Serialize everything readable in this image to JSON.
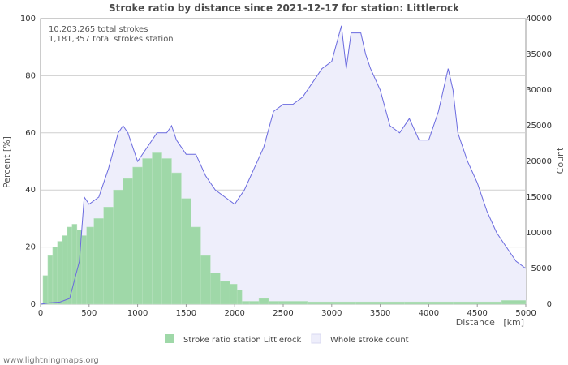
{
  "chart_data": {
    "type": "bar+area",
    "title": "Stroke ratio by distance since 2021-12-17 for station: Littlerock",
    "xlabel": "Distance   [km]",
    "ylabel_left": "Percent   [%]",
    "ylabel_right": "Count",
    "x_ticks": [
      "0",
      "500",
      "1000",
      "1500",
      "2000",
      "2500",
      "3000",
      "3500",
      "4000",
      "4500",
      "5000"
    ],
    "y_left_ticks": [
      "0",
      "20",
      "40",
      "60",
      "80",
      "100"
    ],
    "y_right_ticks": [
      "0",
      "5000",
      "10000",
      "15000",
      "20000",
      "25000",
      "30000",
      "35000",
      "40000"
    ],
    "xlim": [
      0,
      5000
    ],
    "ylim_left": [
      0,
      100
    ],
    "ylim_right": [
      0,
      40000
    ],
    "annotations": [
      "10,203,265 total strokes",
      "1,181,357 total strokes station"
    ],
    "series": [
      {
        "name": "Stroke ratio station Littlerock",
        "axis": "left",
        "style": "bar",
        "color": "#9fd8a8",
        "x": [
          50,
          100,
          150,
          200,
          250,
          300,
          350,
          400,
          450,
          500,
          600,
          700,
          800,
          900,
          1000,
          1100,
          1200,
          1300,
          1400,
          1500,
          1600,
          1700,
          1800,
          1900,
          2000,
          2050,
          2100,
          2200,
          2300,
          2400,
          2500,
          3000,
          3500,
          4000,
          4500,
          5000
        ],
        "values": [
          10,
          17,
          20,
          22,
          24,
          27,
          28,
          26,
          24,
          27,
          30,
          34,
          40,
          44,
          48,
          51,
          53,
          51,
          46,
          37,
          27,
          17,
          11,
          8,
          7,
          5,
          1,
          1,
          2,
          1,
          1,
          0.8,
          0.8,
          0.8,
          0.8,
          1.3
        ]
      },
      {
        "name": "Whole stroke count",
        "axis": "right",
        "style": "area",
        "color": "#6a6adf",
        "fill": "#eeeefb",
        "x": [
          0,
          100,
          200,
          300,
          400,
          450,
          500,
          600,
          700,
          800,
          850,
          900,
          1000,
          1100,
          1200,
          1300,
          1350,
          1400,
          1500,
          1600,
          1700,
          1800,
          1900,
          2000,
          2100,
          2200,
          2300,
          2400,
          2500,
          2600,
          2700,
          2800,
          2900,
          3000,
          3100,
          3150,
          3200,
          3300,
          3350,
          3400,
          3500,
          3600,
          3700,
          3800,
          3900,
          4000,
          4100,
          4200,
          4250,
          4300,
          4400,
          4500,
          4600,
          4700,
          4800,
          4900,
          5000
        ],
        "values": [
          0,
          200,
          300,
          800,
          6000,
          15000,
          14000,
          15000,
          19000,
          24000,
          25000,
          24000,
          20000,
          22000,
          24000,
          24000,
          25000,
          23000,
          21000,
          21000,
          18000,
          16000,
          15000,
          14000,
          16000,
          19000,
          22000,
          27000,
          28000,
          28000,
          29000,
          31000,
          33000,
          34000,
          39000,
          33000,
          38000,
          38000,
          35000,
          33000,
          30000,
          25000,
          24000,
          26000,
          23000,
          23000,
          27000,
          33000,
          30000,
          24000,
          20000,
          17000,
          13000,
          10000,
          8000,
          6000,
          5000
        ]
      }
    ],
    "legend": "bottom-center",
    "grid": true
  },
  "legend_items": [
    "Stroke ratio station Littlerock",
    "Whole stroke count"
  ],
  "credit": "www.lightningmaps.org"
}
